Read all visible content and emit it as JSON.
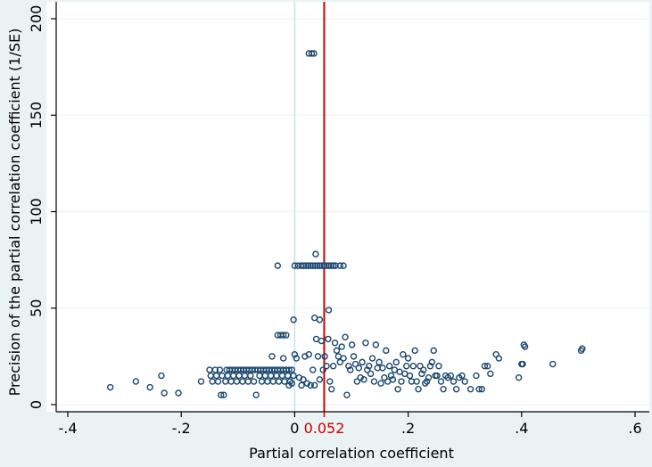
{
  "chart_data": {
    "type": "scatter",
    "xlabel": "Partial correlation coefficient",
    "ylabel": "Precision of the partial correlation coefficient (1/SE)",
    "xlim": [
      -0.4,
      0.6
    ],
    "ylim": [
      0,
      200
    ],
    "x_ticks": [
      {
        "value": -0.4,
        "label": "-.4"
      },
      {
        "value": -0.2,
        "label": "-.2"
      },
      {
        "value": 0,
        "label": "0"
      },
      {
        "value": 0.2,
        "label": ".2"
      },
      {
        "value": 0.4,
        "label": ".4"
      },
      {
        "value": 0.6,
        "label": ".6"
      }
    ],
    "y_ticks": [
      {
        "value": 0,
        "label": "0"
      },
      {
        "value": 50,
        "label": "50"
      },
      {
        "value": 100,
        "label": "100"
      },
      {
        "value": 150,
        "label": "150"
      },
      {
        "value": 200,
        "label": "200"
      }
    ],
    "grid": true,
    "reference_lines": [
      {
        "x": 0,
        "label": "",
        "color": "#c9dfe5"
      },
      {
        "x": 0.052,
        "label": "0.052",
        "color": "#cc0000"
      }
    ],
    "colors": {
      "background": "#eaf2f3",
      "plot_background": "#ffffff",
      "marker": "#1a476f",
      "reference": "#cc0000",
      "zero_line": "#c9dfe5",
      "grid": "#eaf2f3"
    },
    "points": [
      [
        0.025,
        182
      ],
      [
        0.03,
        182
      ],
      [
        0.034,
        182
      ],
      [
        0.037,
        78
      ],
      [
        0.06,
        49
      ],
      [
        0.035,
        45
      ],
      [
        0.044,
        44
      ],
      [
        -0.002,
        44
      ],
      [
        -0.03,
        72
      ],
      [
        0.0,
        72
      ],
      [
        0.006,
        72
      ],
      [
        0.012,
        72
      ],
      [
        0.016,
        72
      ],
      [
        0.02,
        72
      ],
      [
        0.024,
        72
      ],
      [
        0.028,
        72
      ],
      [
        0.032,
        72
      ],
      [
        0.036,
        72
      ],
      [
        0.04,
        72
      ],
      [
        0.044,
        72
      ],
      [
        0.048,
        72
      ],
      [
        0.052,
        72
      ],
      [
        0.056,
        72
      ],
      [
        0.06,
        72
      ],
      [
        0.064,
        72
      ],
      [
        0.068,
        72
      ],
      [
        0.072,
        72
      ],
      [
        0.08,
        72
      ],
      [
        0.086,
        72
      ],
      [
        -0.03,
        36
      ],
      [
        -0.025,
        36
      ],
      [
        -0.02,
        36
      ],
      [
        -0.015,
        36
      ],
      [
        -0.325,
        9
      ],
      [
        -0.28,
        12
      ],
      [
        -0.255,
        9
      ],
      [
        -0.235,
        15
      ],
      [
        -0.23,
        6
      ],
      [
        -0.205,
        6
      ],
      [
        -0.165,
        12
      ],
      [
        -0.15,
        18
      ],
      [
        -0.148,
        15
      ],
      [
        -0.145,
        12
      ],
      [
        -0.14,
        18
      ],
      [
        -0.138,
        15
      ],
      [
        -0.135,
        12
      ],
      [
        -0.132,
        18
      ],
      [
        -0.13,
        5
      ],
      [
        -0.128,
        15
      ],
      [
        -0.125,
        5
      ],
      [
        -0.122,
        12
      ],
      [
        -0.12,
        18
      ],
      [
        -0.118,
        15
      ],
      [
        -0.115,
        18
      ],
      [
        -0.112,
        12
      ],
      [
        -0.11,
        18
      ],
      [
        -0.108,
        15
      ],
      [
        -0.105,
        18
      ],
      [
        -0.102,
        12
      ],
      [
        -0.1,
        18
      ],
      [
        -0.098,
        15
      ],
      [
        -0.095,
        18
      ],
      [
        -0.092,
        12
      ],
      [
        -0.09,
        18
      ],
      [
        -0.088,
        15
      ],
      [
        -0.085,
        18
      ],
      [
        -0.082,
        12
      ],
      [
        -0.08,
        18
      ],
      [
        -0.078,
        15
      ],
      [
        -0.075,
        18
      ],
      [
        -0.072,
        12
      ],
      [
        -0.07,
        18
      ],
      [
        -0.068,
        5
      ],
      [
        -0.065,
        18
      ],
      [
        -0.062,
        15
      ],
      [
        -0.06,
        18
      ],
      [
        -0.058,
        12
      ],
      [
        -0.055,
        18
      ],
      [
        -0.052,
        15
      ],
      [
        -0.05,
        18
      ],
      [
        -0.048,
        12
      ],
      [
        -0.045,
        18
      ],
      [
        -0.042,
        15
      ],
      [
        -0.04,
        18
      ],
      [
        -0.038,
        12
      ],
      [
        -0.035,
        18
      ],
      [
        -0.032,
        15
      ],
      [
        -0.03,
        18
      ],
      [
        -0.028,
        12
      ],
      [
        -0.025,
        18
      ],
      [
        -0.022,
        15
      ],
      [
        -0.02,
        18
      ],
      [
        -0.018,
        12
      ],
      [
        -0.015,
        18
      ],
      [
        -0.012,
        15
      ],
      [
        -0.01,
        18
      ],
      [
        -0.008,
        12
      ],
      [
        -0.005,
        18
      ],
      [
        -0.002,
        15
      ],
      [
        -0.04,
        25
      ],
      [
        -0.02,
        24
      ],
      [
        -0.01,
        10
      ],
      [
        -0.005,
        11
      ],
      [
        0.0,
        26
      ],
      [
        0.003,
        24
      ],
      [
        0.008,
        14
      ],
      [
        0.012,
        10
      ],
      [
        0.015,
        13
      ],
      [
        0.018,
        25
      ],
      [
        0.022,
        11
      ],
      [
        0.025,
        26
      ],
      [
        0.028,
        10
      ],
      [
        0.032,
        18
      ],
      [
        0.035,
        10
      ],
      [
        0.038,
        34
      ],
      [
        0.041,
        25
      ],
      [
        0.044,
        13
      ],
      [
        0.047,
        33
      ],
      [
        0.05,
        18
      ],
      [
        0.053,
        25
      ],
      [
        0.056,
        20
      ],
      [
        0.059,
        34
      ],
      [
        0.062,
        12
      ],
      [
        0.065,
        8
      ],
      [
        0.068,
        20
      ],
      [
        0.071,
        32
      ],
      [
        0.074,
        28
      ],
      [
        0.077,
        25
      ],
      [
        0.08,
        22
      ],
      [
        0.083,
        30
      ],
      [
        0.086,
        24
      ],
      [
        0.089,
        35
      ],
      [
        0.092,
        5
      ],
      [
        0.095,
        20
      ],
      [
        0.098,
        18
      ],
      [
        0.101,
        31
      ],
      [
        0.104,
        25
      ],
      [
        0.107,
        21
      ],
      [
        0.11,
        12
      ],
      [
        0.113,
        19
      ],
      [
        0.116,
        14
      ],
      [
        0.119,
        22
      ],
      [
        0.122,
        13
      ],
      [
        0.125,
        32
      ],
      [
        0.128,
        18
      ],
      [
        0.131,
        20
      ],
      [
        0.134,
        16
      ],
      [
        0.137,
        24
      ],
      [
        0.14,
        12
      ],
      [
        0.143,
        31
      ],
      [
        0.146,
        19
      ],
      [
        0.149,
        22
      ],
      [
        0.152,
        11
      ],
      [
        0.155,
        19
      ],
      [
        0.158,
        14
      ],
      [
        0.161,
        28
      ],
      [
        0.164,
        12
      ],
      [
        0.167,
        20
      ],
      [
        0.17,
        15
      ],
      [
        0.173,
        13
      ],
      [
        0.176,
        18
      ],
      [
        0.179,
        22
      ],
      [
        0.182,
        8
      ],
      [
        0.185,
        17
      ],
      [
        0.188,
        12
      ],
      [
        0.191,
        26
      ],
      [
        0.194,
        16
      ],
      [
        0.197,
        20
      ],
      [
        0.2,
        24
      ],
      [
        0.203,
        15
      ],
      [
        0.206,
        12
      ],
      [
        0.209,
        20
      ],
      [
        0.212,
        28
      ],
      [
        0.215,
        12
      ],
      [
        0.218,
        8
      ],
      [
        0.221,
        20
      ],
      [
        0.224,
        16
      ],
      [
        0.227,
        18
      ],
      [
        0.23,
        11
      ],
      [
        0.233,
        12
      ],
      [
        0.236,
        14
      ],
      [
        0.239,
        20
      ],
      [
        0.242,
        22
      ],
      [
        0.245,
        28
      ],
      [
        0.248,
        15
      ],
      [
        0.251,
        15
      ],
      [
        0.254,
        20
      ],
      [
        0.258,
        12
      ],
      [
        0.262,
        8
      ],
      [
        0.266,
        15
      ],
      [
        0.27,
        14
      ],
      [
        0.275,
        15
      ],
      [
        0.28,
        12
      ],
      [
        0.285,
        8
      ],
      [
        0.29,
        14
      ],
      [
        0.295,
        15
      ],
      [
        0.3,
        12
      ],
      [
        0.31,
        8
      ],
      [
        0.32,
        15
      ],
      [
        0.325,
        8
      ],
      [
        0.33,
        8
      ],
      [
        0.335,
        20
      ],
      [
        0.34,
        20
      ],
      [
        0.345,
        16
      ],
      [
        0.355,
        26
      ],
      [
        0.36,
        24
      ],
      [
        0.395,
        14
      ],
      [
        0.4,
        21
      ],
      [
        0.402,
        21
      ],
      [
        0.404,
        31
      ],
      [
        0.406,
        30
      ],
      [
        0.455,
        21
      ],
      [
        0.505,
        28
      ],
      [
        0.507,
        29
      ]
    ]
  }
}
